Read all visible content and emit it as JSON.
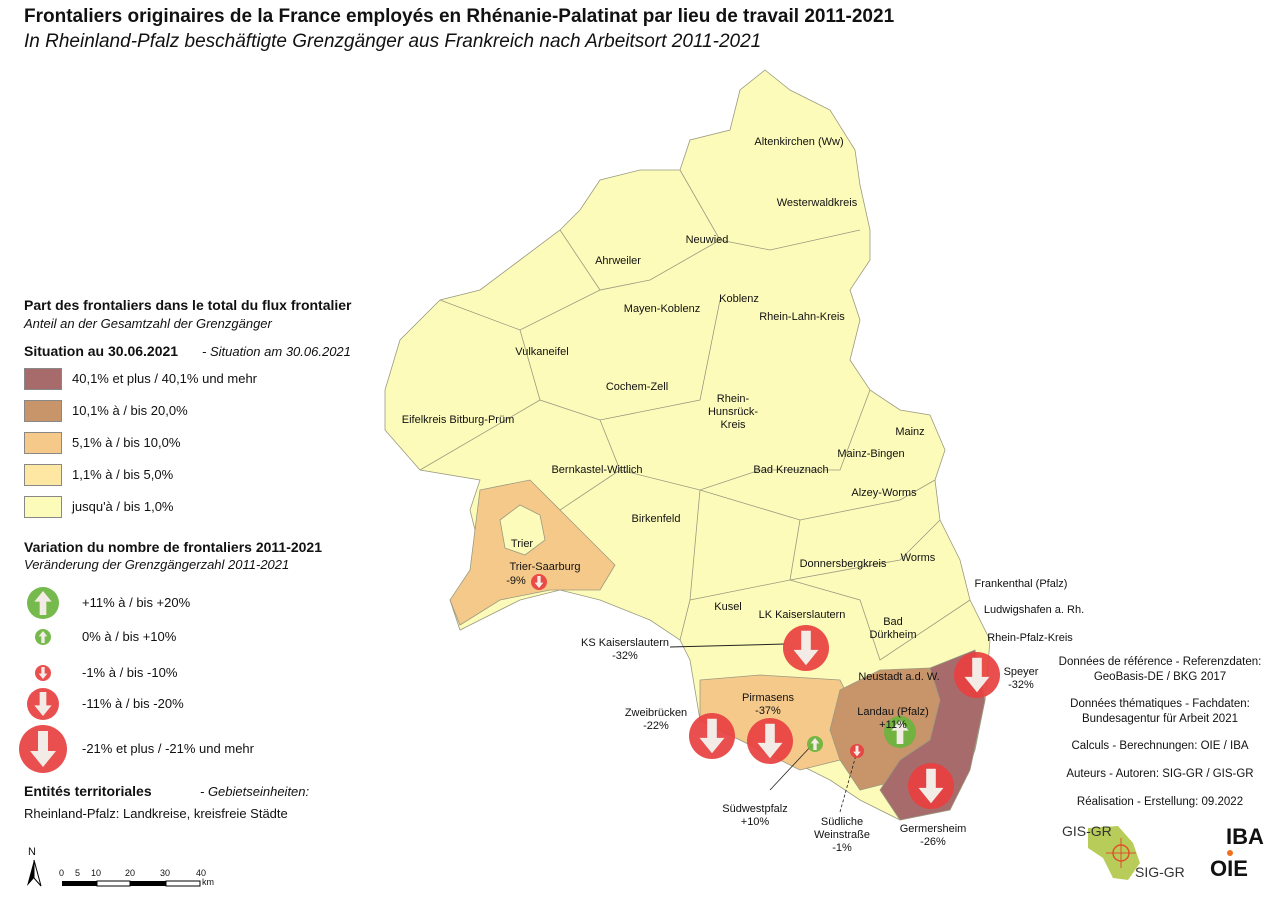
{
  "title": "Frontaliers originaires de la France employés en Rhénanie-Palatinat par lieu de travail 2011-2021",
  "subtitle": "In Rheinland-Pfalz beschäftigte Grenzgänger aus Frankreich nach Arbeitsort 2011-2021",
  "legend": {
    "share_title": "Part des frontaliers dans le total du flux frontalier",
    "share_subtitle": "Anteil an der Gesamtzahl der Grenzgänger",
    "situation": "Situation au 30.06.2021",
    "situation_de": "- Situation am 30.06.2021",
    "classes": [
      {
        "label": "40,1% et plus / 40,1% und mehr",
        "color": "#a86b6b"
      },
      {
        "label": "10,1% à / bis 20,0%",
        "color": "#c8946a"
      },
      {
        "label": "5,1% à / bis 10,0%",
        "color": "#f5c98a"
      },
      {
        "label": "1,1% à / bis 5,0%",
        "color": "#fde7a3"
      },
      {
        "label": "jusqu'à / bis 1,0%",
        "color": "#fdfbb9"
      }
    ],
    "change_title": "Variation du nombre de frontaliers 2011-2021",
    "change_subtitle": "Veränderung der Grenzgängerzahl 2011-2021",
    "changes": [
      {
        "label": "+11% à / bis +20%",
        "direction": "up",
        "color": "#6ab43e"
      },
      {
        "label": "0% à / bis +10%",
        "direction": "up",
        "color": "#6ab43e"
      },
      {
        "label": "-1% à / bis -10%",
        "direction": "down",
        "color": "#e84040"
      },
      {
        "label": "-11% à / bis -20%",
        "direction": "down",
        "color": "#e84040"
      },
      {
        "label": "-21% et plus / -21% und mehr",
        "direction": "down",
        "color": "#e84040"
      }
    ],
    "entities_title": "Entités territoriales",
    "entities_de": "- Gebietseinheiten:",
    "entities_text": "Rheinland-Pfalz: Landkreise, kreisfreie Städte"
  },
  "regions": {
    "altenkirchen": "Altenkirchen (Ww)",
    "westerwald": "Westerwaldkreis",
    "neuwied": "Neuwied",
    "ahrweiler": "Ahrweiler",
    "koblenz": "Koblenz",
    "mayen": "Mayen-Koblenz",
    "rheinlahn": "Rhein-Lahn-Kreis",
    "vulkaneifel": "Vulkaneifel",
    "cochem": "Cochem-Zell",
    "hunsrueck": "Rhein-\nHunsrück-\nKreis",
    "eifelkreis": "Eifelkreis Bitburg-Prüm",
    "mainz": "Mainz",
    "mainzbingen": "Mainz-Bingen",
    "bernkastel": "Bernkastel-Wittlich",
    "kreuznach": "Bad Kreuznach",
    "alzey": "Alzey-Worms",
    "birkenfeld": "Birkenfeld",
    "trier": "Trier",
    "trier_saarburg": "Trier-Saarburg",
    "trier_saarburg_val": "-9%",
    "worms": "Worms",
    "donnersberg": "Donnersbergkreis",
    "frankenthal": "Frankenthal (Pfalz)",
    "ludwigshafen": "Ludwigshafen a. Rh.",
    "kusel": "Kusel",
    "lk_kl": "LK Kaiserslautern",
    "duerkheim": "Bad\nDürkheim",
    "rheinpfalz": "Rhein-Pfalz-Kreis",
    "ks_kl": "KS Kaiserslautern\n-32%",
    "speyer": "Speyer\n-32%",
    "neustadt": "Neustadt a.d. W.",
    "zweibruecken": "Zweibrücken\n-22%",
    "pirmasens": "Pirmasens\n-37%",
    "landau": "Landau (Pfalz)\n+11%",
    "suedwestpfalz": "Südwestpfalz\n+10%",
    "suedl_wein": "Südliche\nWeinstraße\n-1%",
    "germersheim": "Germersheim\n-26%"
  },
  "credits": [
    "Données de référence - Referenzdaten:\nGeoBasis-DE / BKG 2017",
    "Données thématiques - Fachdaten:\nBundesagentur für Arbeit 2021",
    "Calculs - Berechnungen: OIE / IBA",
    "Auteurs - Autoren: SIG-GR / GIS-GR",
    "Réalisation - Erstellung: 09.2022"
  ],
  "logos": {
    "gis": "GIS-GR",
    "sig": "SIG-GR",
    "iba": "IBA",
    "oie": "OIE"
  },
  "north": "N",
  "scale": {
    "ticks": [
      "0",
      "5",
      "10",
      "20",
      "30",
      "40"
    ],
    "unit": "km"
  }
}
